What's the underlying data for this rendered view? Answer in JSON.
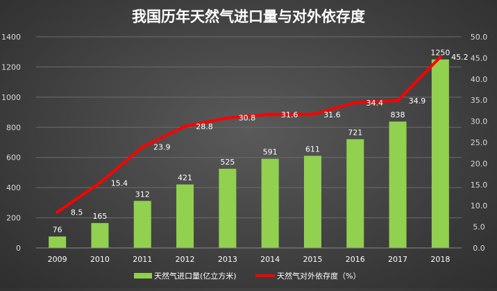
{
  "chart_data": {
    "type": "bar",
    "title": "我国历年天然气进口量与对外依存度",
    "categories": [
      "2009",
      "2010",
      "2011",
      "2012",
      "2013",
      "2014",
      "2015",
      "2016",
      "2017",
      "2018"
    ],
    "series": [
      {
        "name": "天然气进口量(亿立方米)",
        "type": "bar",
        "axis": "left",
        "color": "#92d050",
        "values": [
          76,
          165,
          312,
          421,
          525,
          591,
          611,
          721,
          838,
          1250
        ]
      },
      {
        "name": "天然气对外依存度（%）",
        "type": "line",
        "axis": "right",
        "color": "#ff0000",
        "values": [
          8.5,
          15.4,
          23.9,
          28.8,
          30.8,
          31.6,
          31.6,
          34.4,
          34.9,
          45.2
        ]
      }
    ],
    "y_left": {
      "min": 0,
      "max": 1400,
      "ticks": [
        "0",
        "200",
        "400",
        "600",
        "800",
        "1000",
        "1200",
        "1400"
      ]
    },
    "y_right": {
      "min": 0,
      "max": 50,
      "ticks": [
        "0.0",
        "5.0",
        "10.0",
        "15.0",
        "20.0",
        "25.0",
        "30.0",
        "35.0",
        "40.0",
        "45.0",
        "50.0"
      ]
    },
    "grid": true,
    "legend_position": "bottom"
  }
}
